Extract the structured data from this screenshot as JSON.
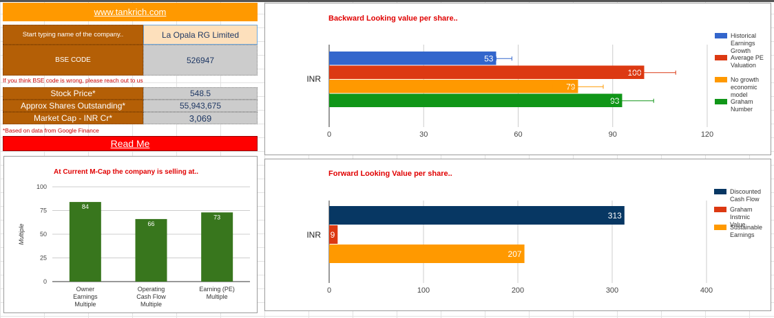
{
  "info": {
    "site_link": "www.tankrich.com",
    "company_label": "Start typing name of the company..",
    "company_value": "La Opala RG Limited",
    "bse_label": "BSE CODE",
    "bse_value": "526947",
    "bse_note": "If you think BSE code is wrong, please reach out to us",
    "price_label": "Stock Price*",
    "price_value": "548.5",
    "shares_label": "Approx Shares Outstanding*",
    "shares_value": "55,943,675",
    "mcap_label": "Market Cap - INR Cr*",
    "mcap_value": "3,069",
    "data_note": "*Based on data from Google Finance",
    "readme": "Read Me"
  },
  "colors": {
    "orange": "#ff9900",
    "brown": "#b45f06",
    "red": "#ff0000",
    "title_red": "#e00000"
  },
  "chart_data": [
    {
      "type": "bar",
      "title": "Backward Looking value per share..",
      "orientation": "horizontal",
      "categories": [
        "INR"
      ],
      "series": [
        {
          "name": "Historical Earnings Growth",
          "values": [
            53
          ],
          "color": "#3366cc",
          "error": [
            53,
            58
          ]
        },
        {
          "name": "Average PE Valuation",
          "values": [
            100
          ],
          "color": "#dc3912",
          "error": [
            89,
            110
          ]
        },
        {
          "name": "No growth economic model",
          "values": [
            79
          ],
          "color": "#ff9900",
          "error": [
            71,
            87
          ]
        },
        {
          "name": "Graham Number",
          "values": [
            93
          ],
          "color": "#109618",
          "error": [
            84,
            103
          ]
        }
      ],
      "xlim": [
        0,
        120
      ],
      "xticks": [
        "0",
        "30",
        "60",
        "90",
        "120"
      ],
      "legend": "right",
      "grid": true
    },
    {
      "type": "bar",
      "title": "At Current M-Cap the company is selling at..",
      "categories": [
        "Owner Earnings Multiple",
        "Operating Cash Flow Multiple",
        "Earning (PE) Multiple"
      ],
      "category_lines": [
        [
          "Owner",
          "Earnings",
          "Multiple"
        ],
        [
          "Operating",
          "Cash Flow",
          "Multiple"
        ],
        [
          "Earning (PE)",
          "Multiple"
        ]
      ],
      "values": [
        84,
        66,
        73
      ],
      "ylabel": "Multiple",
      "ylim": [
        0,
        100
      ],
      "yticks": [
        "0",
        "25",
        "50",
        "75",
        "100"
      ],
      "color": "#38761d",
      "grid": true
    },
    {
      "type": "bar",
      "title": "Forward Looking Value per share..",
      "orientation": "horizontal",
      "categories": [
        "INR"
      ],
      "series": [
        {
          "name": "Discounted Cash Flow",
          "values": [
            313
          ],
          "color": "#073763"
        },
        {
          "name": "Graham Instrnic Value",
          "values": [
            9
          ],
          "color": "#dc3912"
        },
        {
          "name": "Sustainable Earnings",
          "values": [
            207
          ],
          "color": "#ff9900"
        }
      ],
      "xlim": [
        0,
        400
      ],
      "xticks": [
        "0",
        "100",
        "200",
        "300",
        "400"
      ],
      "legend": "right",
      "grid": true
    }
  ]
}
